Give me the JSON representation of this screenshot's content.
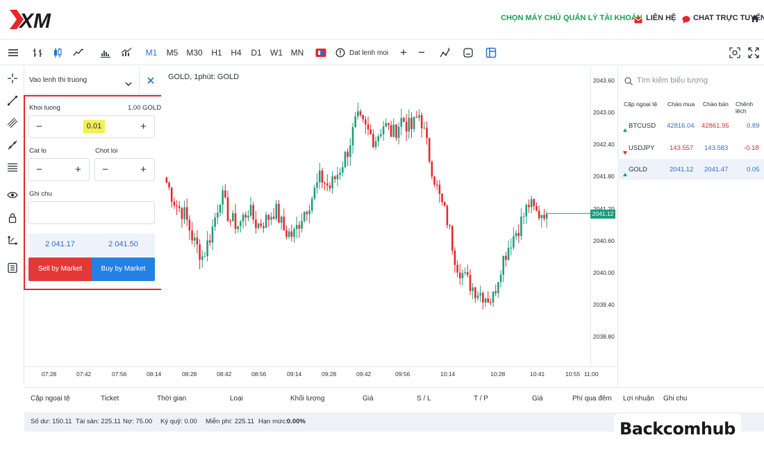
{
  "brand": {
    "logo_text": "XM",
    "watermark": "Backcomhub"
  },
  "topnav": {
    "choose_server": "CHỌN MÁY CHỦ",
    "account_manage": "QUẢN LÝ TÀI KHOẢN",
    "contact": "LIÊN HỆ",
    "live_chat": "CHAT TRỰC TUYẾN"
  },
  "toolbar": {
    "timeframes": [
      "M1",
      "M5",
      "M30",
      "H1",
      "H4",
      "D1",
      "W1",
      "MN"
    ],
    "active_timeframe": "M1",
    "new_order": "Dat lenh moi",
    "plus": "+",
    "minus": "−"
  },
  "order_panel": {
    "order_type": "Vao lenh thi truong",
    "volume_label": "Khoi luong",
    "volume_units": "1.00 GOLD",
    "volume_value": "0.01",
    "stop_loss_label": "Cat lo",
    "take_profit_label": "Chot loi",
    "note_label": "Ghi chu",
    "bid_price": "2 041.17",
    "ask_price": "2 041.50",
    "sell_label": "Sell by Market",
    "buy_label": "Buy by Market",
    "minus": "−",
    "plus": "+"
  },
  "chart": {
    "title": "GOLD, 1phút: GOLD",
    "current_price": "2041.12"
  },
  "chart_data": {
    "type": "candlestick",
    "title": "GOLD, 1phút: GOLD",
    "y_ticks": [
      "2043.60",
      "2043.00",
      "2042.40",
      "2041.80",
      "2041.20",
      "2040.60",
      "2040.00",
      "2039.40",
      "2038.80"
    ],
    "x_ticks": [
      "07:28",
      "07:42",
      "07:56",
      "08:14",
      "08:28",
      "08:42",
      "08:56",
      "09:14",
      "09:28",
      "09:42",
      "09:56",
      "10:14",
      "10:28",
      "10:41",
      "10:55",
      "11:00"
    ],
    "ylim": [
      2038.4,
      2044.0
    ],
    "close_path": [
      2041.7,
      2041.3,
      2041.1,
      2040.6,
      2040.3,
      2040.8,
      2041.5,
      2041.0,
      2040.9,
      2041.2,
      2040.9,
      2041.0,
      2041.2,
      2040.8,
      2040.7,
      2041.1,
      2041.4,
      2041.8,
      2041.6,
      2041.9,
      2042.3,
      2042.9,
      2042.7,
      2042.5,
      2042.8,
      2042.6,
      2042.9,
      2042.7,
      2043.0,
      2042.2,
      2041.5,
      2041.0,
      2040.2,
      2039.9,
      2039.7,
      2039.6,
      2039.5,
      2040.2,
      2040.6,
      2040.9,
      2041.3,
      2041.1,
      2041.2
    ],
    "current_price": 2041.12
  },
  "watchlist": {
    "search_placeholder": "Tìm kiếm biểu tượng",
    "headers": [
      "Cặp ngoại tệ",
      "Chào mua",
      "Chào bán",
      "Chênh lệch"
    ],
    "rows": [
      {
        "symbol": "BTCUSD",
        "bid": "42816.04",
        "ask": "42861.95",
        "spread": "0.89",
        "dir": "up"
      },
      {
        "symbol": "USDJPY",
        "bid": "143.557",
        "ask": "143.583",
        "spread": "-0.18",
        "dir": "down"
      },
      {
        "symbol": "GOLD",
        "bid": "2041.12",
        "ask": "2041.47",
        "spread": "0.05",
        "dir": "up"
      }
    ]
  },
  "positions": {
    "headers": [
      "Cặp ngoại tệ",
      "Ticket",
      "Thời gian",
      "Loại",
      "Khối lượng",
      "Giá",
      "S / L",
      "T / P",
      "Giá",
      "Phí qua đêm",
      "Lợi nhuận",
      "Ghi chu"
    ]
  },
  "balance": {
    "balance": "Số dư: 150.11",
    "equity": "Tài sản: 225.11",
    "debt": "Nợ: 75.00",
    "margin": "Ký quỹ: 0.00",
    "free_margin": "Miễn phí: 225.11",
    "margin_level_label": "Hạn mức:",
    "margin_level_value": "0.00%"
  },
  "colors": {
    "accent": "#1d74d8",
    "green": "#18a04a",
    "sell": "#e33838",
    "buy": "#2381e4",
    "bull": "#1a9c7f",
    "bear": "#e5262a",
    "highlight": "#e5262a"
  }
}
